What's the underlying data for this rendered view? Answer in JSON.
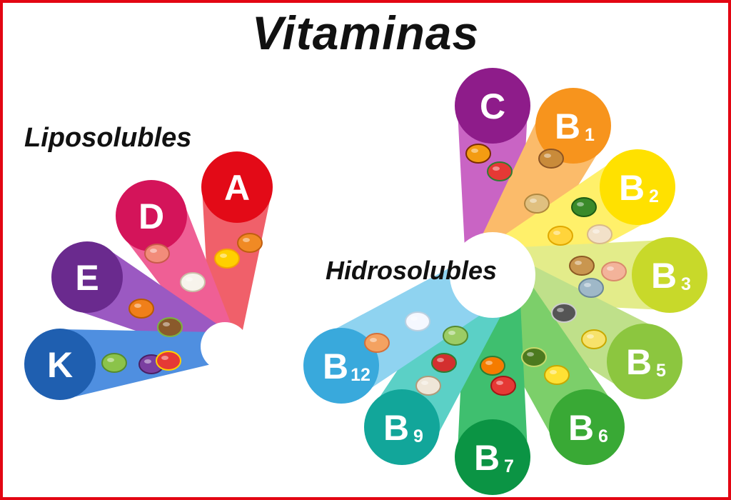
{
  "title": "Vitaminas",
  "groups": {
    "liposolubles": {
      "label": "Liposolubles",
      "vitamins": [
        {
          "letter": "A",
          "sub": "",
          "color": "#e30a17",
          "ray": "#f0606a"
        },
        {
          "letter": "D",
          "sub": "",
          "color": "#d4145a",
          "ray": "#ef5f95"
        },
        {
          "letter": "E",
          "sub": "",
          "color": "#6a2a8e",
          "ray": "#9b59c2"
        },
        {
          "letter": "K",
          "sub": "",
          "color": "#1f5fb0",
          "ray": "#4f8fe0"
        }
      ]
    },
    "hidrosolubles": {
      "label": "Hidrosolubles",
      "vitamins": [
        {
          "letter": "C",
          "sub": "",
          "color": "#8e1c8a",
          "ray": "#c964c4"
        },
        {
          "letter": "B",
          "sub": "1",
          "color": "#f7941d",
          "ray": "#fbbb6a"
        },
        {
          "letter": "B",
          "sub": "2",
          "color": "#ffe100",
          "ray": "#fff06a"
        },
        {
          "letter": "B",
          "sub": "3",
          "color": "#c8d92a",
          "ray": "#e3ec8a"
        },
        {
          "letter": "B",
          "sub": "5",
          "color": "#8cc63f",
          "ray": "#bfe08a"
        },
        {
          "letter": "B",
          "sub": "6",
          "color": "#39a935",
          "ray": "#7ccf6a"
        },
        {
          "letter": "B",
          "sub": "7",
          "color": "#0b9444",
          "ray": "#3fbf6f"
        },
        {
          "letter": "B",
          "sub": "9",
          "color": "#12a69a",
          "ray": "#5bd0c6"
        },
        {
          "letter": "B",
          "sub": "12",
          "color": "#39a9dc",
          "ray": "#8fd3f0"
        }
      ]
    }
  },
  "food_icons": [
    "papaya-icon",
    "watermelon-icon",
    "bread-icon",
    "potato-icon",
    "broccoli-icon",
    "cheese-icon",
    "egg-icon",
    "peanut-icon",
    "chicken-icon",
    "fish-icon",
    "sunflower-seed-icon",
    "olive-oil-icon",
    "banana-icon",
    "avocado-icon",
    "carrot-icon",
    "tomato-icon",
    "strawberry-icon",
    "mushroom-icon",
    "lettuce-icon",
    "milk-bottle-icon",
    "shrimp-icon",
    "apricot-icon",
    "lemon-icon",
    "salmon-icon",
    "milk-icon",
    "pumpkin-icon",
    "kiwi-icon",
    "pear-icon",
    "eggplant-icon",
    "pepper-icon"
  ]
}
